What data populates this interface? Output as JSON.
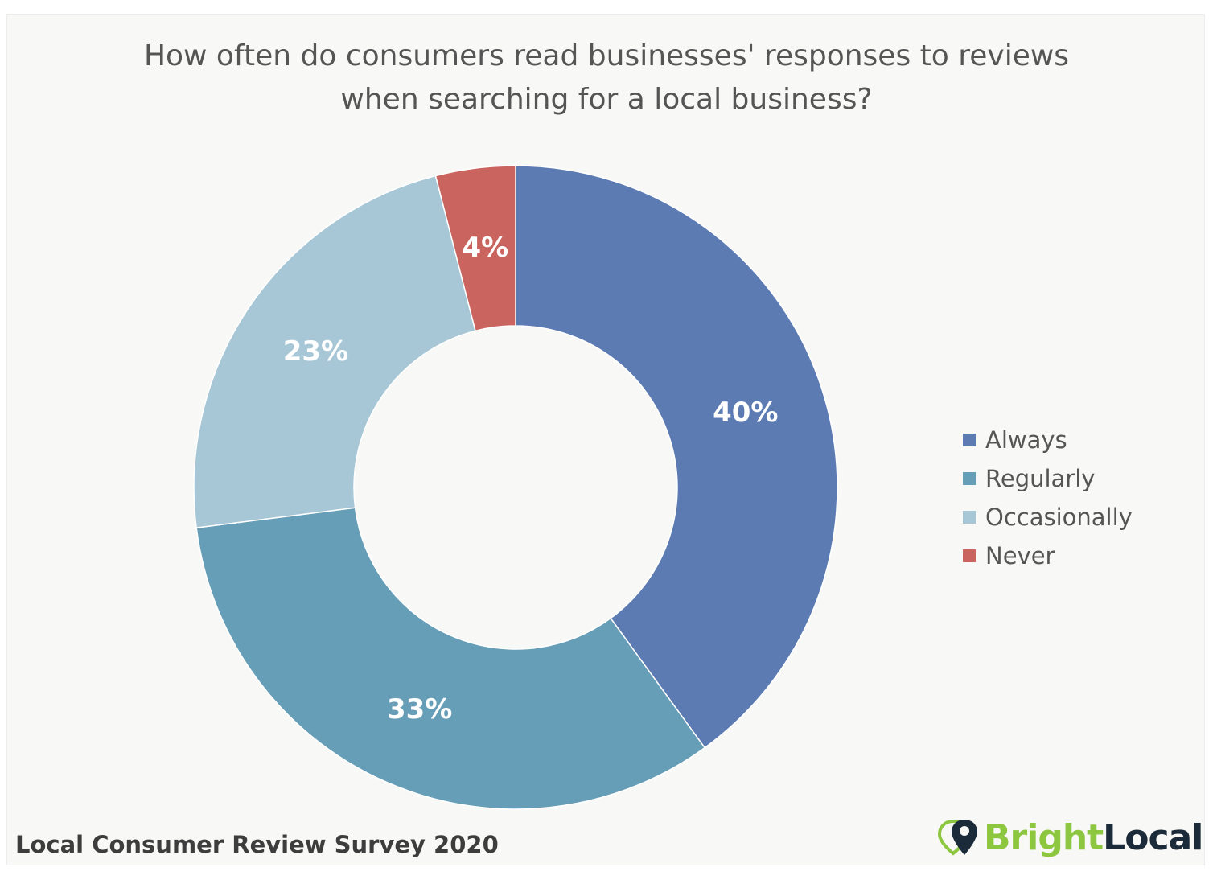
{
  "chart_data": {
    "type": "pie",
    "variant": "donut",
    "title_lines": [
      "How often do consumers read businesses' responses to reviews",
      "when searching for a local business?"
    ],
    "categories": [
      "Always",
      "Regularly",
      "Occasionally",
      "Never"
    ],
    "values": [
      40,
      33,
      23,
      4
    ],
    "value_labels": [
      "40%",
      "33%",
      "23%",
      "4%"
    ],
    "colors": [
      "#5c7bb3",
      "#669eb8",
      "#a7c7d6",
      "#c9645e"
    ],
    "legend_position": "right"
  },
  "footer": {
    "source": "Local Consumer Review Survey 2020",
    "logo_bright": "Bright",
    "logo_local": "Local"
  }
}
